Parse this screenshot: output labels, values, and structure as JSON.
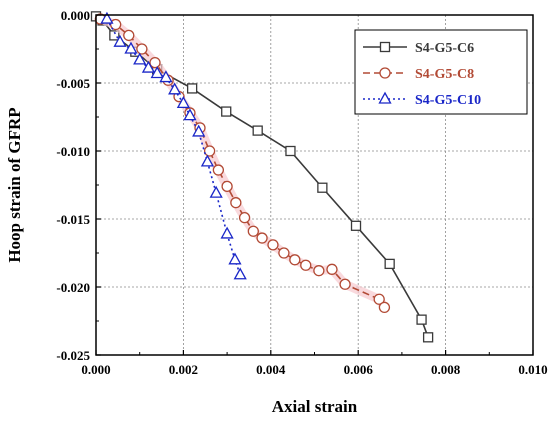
{
  "chart_data": {
    "type": "line",
    "xlabel": "Axial strain",
    "ylabel": "Hoop strain of GFRP",
    "xlim": [
      0,
      0.01
    ],
    "ylim": [
      -0.025,
      0
    ],
    "xticks": [
      0,
      0.002,
      0.004,
      0.006,
      0.008,
      0.01
    ],
    "xtick_labels": [
      "0.000",
      "0.002",
      "0.004",
      "0.006",
      "0.008",
      "0.010"
    ],
    "yticks": [
      0,
      -0.005,
      -0.01,
      -0.015,
      -0.02,
      -0.025
    ],
    "ytick_labels": [
      "0.000",
      "-0.005",
      "-0.010",
      "-0.015",
      "-0.020",
      "-0.025"
    ],
    "grid": true,
    "legend_position": "top-right",
    "series": [
      {
        "name": "S4-G5-C6",
        "color": "#3a3a3a",
        "marker": "square",
        "line_style": "solid",
        "x": [
          0.0,
          0.00015,
          0.00042,
          0.0009,
          0.0014,
          0.0022,
          0.00298,
          0.0037,
          0.00445,
          0.00518,
          0.00595,
          0.00672,
          0.00745,
          0.0076
        ],
        "y": [
          -0.0001,
          -0.0004,
          -0.0015,
          -0.0027,
          -0.004,
          -0.0054,
          -0.0071,
          -0.0085,
          -0.01,
          -0.0127,
          -0.0155,
          -0.0183,
          -0.0224,
          -0.0237
        ]
      },
      {
        "name": "S4-G5-C8",
        "color": "#b24a35",
        "marker": "circle",
        "line_style": "dashed",
        "x": [
          0.0001,
          0.00045,
          0.00075,
          0.00105,
          0.00135,
          0.00165,
          0.0019,
          0.00215,
          0.00238,
          0.0026,
          0.0028,
          0.003,
          0.0032,
          0.0034,
          0.0036,
          0.0038,
          0.00405,
          0.0043,
          0.00455,
          0.0048,
          0.0051,
          0.0054,
          0.0057,
          0.00648,
          0.0066
        ],
        "y": [
          -0.0003,
          -0.0007,
          -0.0015,
          -0.0025,
          -0.0035,
          -0.0048,
          -0.006,
          -0.0072,
          -0.0083,
          -0.01,
          -0.0114,
          -0.0126,
          -0.0138,
          -0.0149,
          -0.0159,
          -0.0164,
          -0.0169,
          -0.0175,
          -0.018,
          -0.0184,
          -0.0188,
          -0.0187,
          -0.0198,
          -0.0209,
          -0.0215
        ]
      },
      {
        "name": "S4-G5-C10",
        "color": "#1a27c8",
        "marker": "triangle",
        "line_style": "dotted",
        "x": [
          0.00025,
          0.00055,
          0.0008,
          0.001,
          0.0012,
          0.0014,
          0.0016,
          0.0018,
          0.002,
          0.00215,
          0.00235,
          0.00255,
          0.00275,
          0.003,
          0.00318,
          0.0033
        ],
        "y": [
          -0.0003,
          -0.002,
          -0.0025,
          -0.0033,
          -0.0039,
          -0.0043,
          -0.0046,
          -0.0055,
          -0.0065,
          -0.0074,
          -0.0086,
          -0.0108,
          -0.0131,
          -0.0161,
          -0.018,
          -0.0191
        ]
      }
    ]
  }
}
